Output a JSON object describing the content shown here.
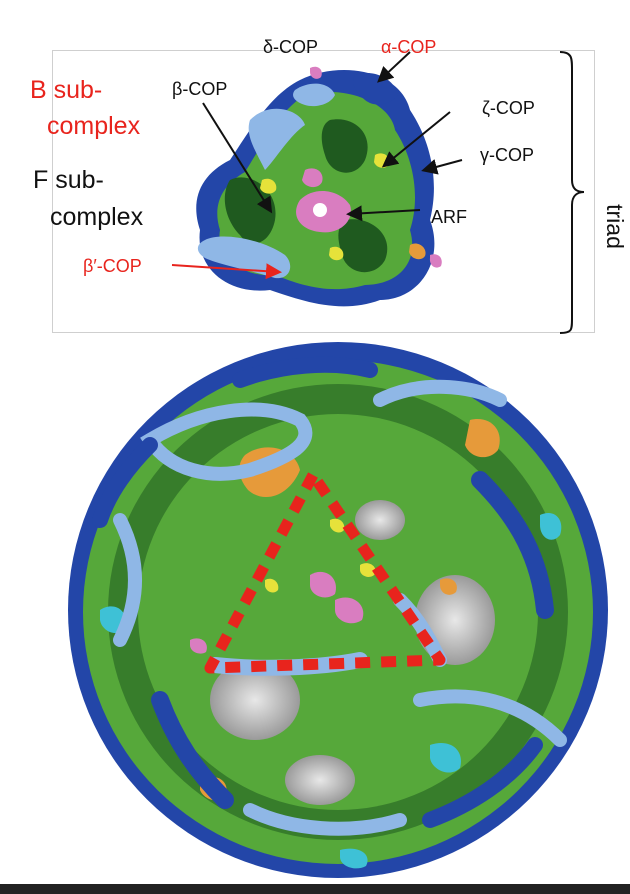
{
  "labels": {
    "b_sub": "B sub-",
    "b_complex": "complex",
    "f_sub": "F sub-",
    "f_complex": "complex",
    "delta_cop": "δ-COP",
    "alpha_cop": "α-COP",
    "beta_cop": "β-COP",
    "zeta_cop": "ζ-COP",
    "gamma_cop": "γ-COP",
    "arf": "ARF",
    "beta_prime_cop": "β′-COP",
    "triad": "triad"
  },
  "colors": {
    "red_label": "#e8241d",
    "dark_blue": "#2346a8",
    "light_blue": "#8fb7e6",
    "dark_green": "#1f5a1f",
    "light_green": "#56a83a",
    "pink": "#d97dc0",
    "orange": "#e69a3a",
    "yellow": "#e6e23a",
    "cyan": "#3ec1d6",
    "triangle_dash": "#e8241d"
  }
}
